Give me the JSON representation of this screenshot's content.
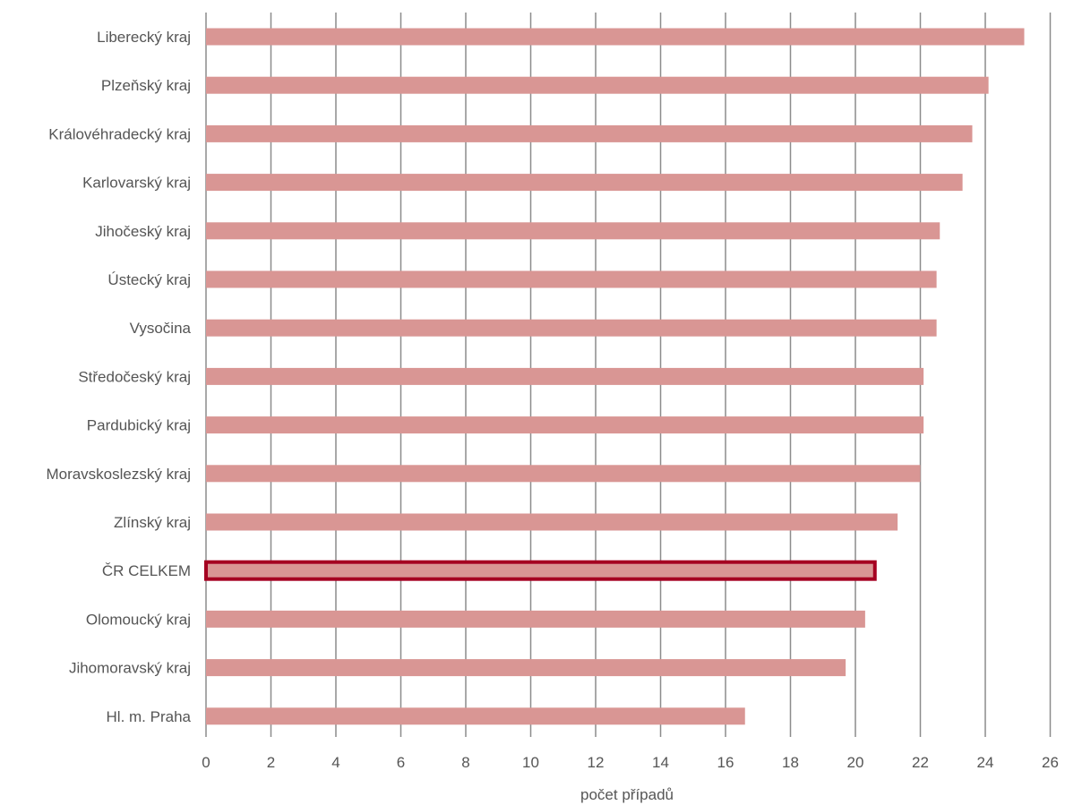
{
  "chart_data": {
    "type": "bar",
    "orientation": "horizontal",
    "categories": [
      "Liberecký kraj",
      "Plzeňský kraj",
      "Královéhradecký kraj",
      "Karlovarský kraj",
      "Jihočeský kraj",
      "Ústecký kraj",
      "Vysočina",
      "Středočeský kraj",
      "Pardubický kraj",
      "Moravskoslezský kraj",
      "Zlínský kraj",
      "ČR CELKEM",
      "Olomoucký kraj",
      "Jihomoravský kraj",
      "Hl. m. Praha"
    ],
    "values": [
      25.2,
      24.1,
      23.6,
      23.3,
      22.6,
      22.5,
      22.5,
      22.1,
      22.1,
      22.0,
      21.3,
      20.6,
      20.3,
      19.7,
      16.6
    ],
    "highlight": "ČR CELKEM",
    "xlabel": "počet případů",
    "ylabel": "",
    "title": "",
    "xlim": [
      0,
      26
    ],
    "xticks": [
      0,
      2,
      4,
      6,
      8,
      10,
      12,
      14,
      16,
      18,
      20,
      22,
      24,
      26
    ],
    "grid": "vertical",
    "colors": {
      "bar": "#d99694",
      "highlight_border": "#a50021",
      "grid": "#8c8c8c",
      "text": "#555555"
    }
  }
}
